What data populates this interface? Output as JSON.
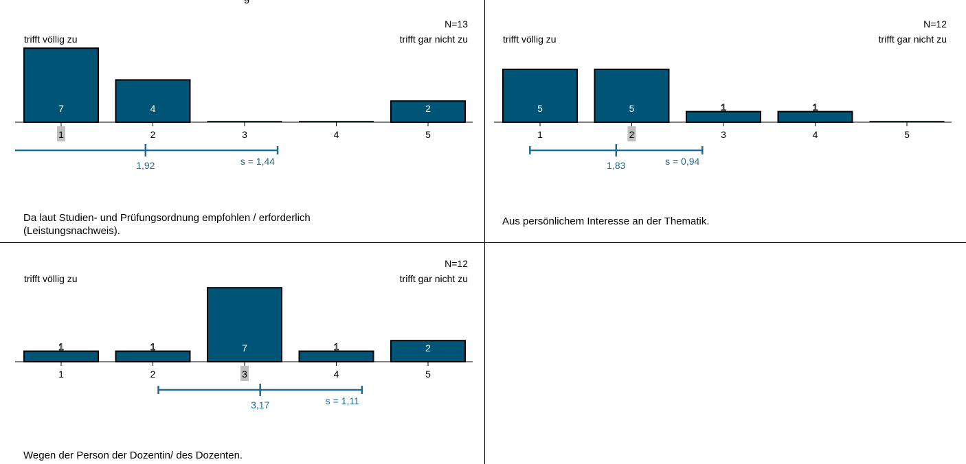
{
  "header_fragment": "g",
  "chart_data": [
    {
      "type": "bar",
      "question": "Da laut Studien- und Prüfungsordnung empfohlen / erforderlich\n(Leistungsnachweis).",
      "n_label": "N=13",
      "left_anchor": "trifft völlig zu",
      "right_anchor": "trifft gar nicht zu",
      "categories": [
        "1",
        "2",
        "3",
        "4",
        "5"
      ],
      "values": [
        7,
        4,
        0,
        0,
        2
      ],
      "value_labels": [
        "7",
        "4",
        "",
        "",
        "2"
      ],
      "median_category": "1",
      "mean": 1.92,
      "mean_label": "1,92",
      "sd": 1.44,
      "sd_label": "s = 1,44",
      "colors": {
        "bar": "#005577",
        "accent": "#1e6a93",
        "median_highlight": "#c0c0c0"
      }
    },
    {
      "type": "bar",
      "question": "Aus persönlichem Interesse an der Thematik.",
      "n_label": "N=12",
      "left_anchor": "trifft völlig zu",
      "right_anchor": "trifft gar nicht zu",
      "categories": [
        "1",
        "2",
        "3",
        "4",
        "5"
      ],
      "values": [
        5,
        5,
        1,
        1,
        0
      ],
      "value_labels": [
        "5",
        "5",
        "1",
        "1",
        ""
      ],
      "median_category": "2",
      "mean": 1.83,
      "mean_label": "1,83",
      "sd": 0.94,
      "sd_label": "s = 0,94",
      "colors": {
        "bar": "#005577",
        "accent": "#1e6a93",
        "median_highlight": "#c0c0c0"
      }
    },
    {
      "type": "bar",
      "question": "Wegen der Person der Dozentin/ des Dozenten.",
      "n_label": "N=12",
      "left_anchor": "trifft völlig zu",
      "right_anchor": "trifft gar nicht zu",
      "categories": [
        "1",
        "2",
        "3",
        "4",
        "5"
      ],
      "values": [
        1,
        1,
        7,
        1,
        2
      ],
      "value_labels": [
        "1",
        "1",
        "7",
        "1",
        "2"
      ],
      "median_category": "3",
      "mean": 3.17,
      "mean_label": "3,17",
      "sd": 1.11,
      "sd_label": "s = 1,11",
      "colors": {
        "bar": "#005577",
        "accent": "#1e6a93",
        "median_highlight": "#c0c0c0"
      }
    }
  ]
}
